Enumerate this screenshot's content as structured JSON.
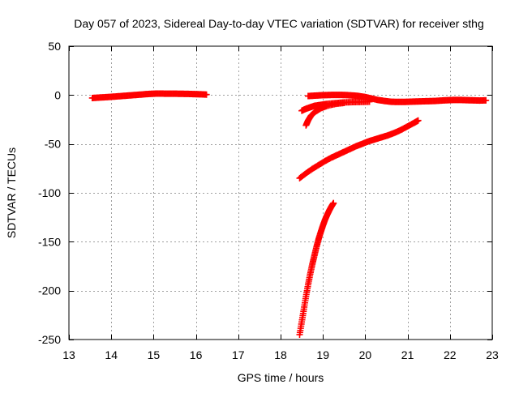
{
  "chart_data": {
    "type": "scatter",
    "title": "Day 057 of 2023, Sidereal Day-to-day VTEC variation (SDTVAR) for receiver sthg",
    "xlabel": "GPS time / hours",
    "ylabel": "SDTVAR / TECUs",
    "xlim": [
      13,
      23
    ],
    "ylim": [
      -250,
      50
    ],
    "x_ticks": [
      13,
      14,
      15,
      16,
      17,
      18,
      19,
      20,
      21,
      22,
      23
    ],
    "y_ticks": [
      50,
      0,
      -50,
      -100,
      -150,
      -200,
      -250
    ],
    "grid": true,
    "legend": "none",
    "marker": "plus",
    "color": "#ff0000",
    "series": [
      {
        "values": [
          [
            13.55,
            -3.0
          ],
          [
            13.7,
            -2.6
          ],
          [
            13.85,
            -2.2
          ],
          [
            14.0,
            -1.8
          ],
          [
            14.15,
            -1.3
          ],
          [
            14.3,
            -0.8
          ],
          [
            14.45,
            -0.3
          ],
          [
            14.6,
            0.2
          ],
          [
            14.75,
            0.7
          ],
          [
            14.9,
            1.2
          ],
          [
            15.05,
            1.5
          ],
          [
            15.2,
            1.5
          ],
          [
            15.35,
            1.4
          ],
          [
            15.5,
            1.4
          ],
          [
            15.65,
            1.3
          ],
          [
            15.8,
            1.2
          ],
          [
            15.95,
            1.0
          ],
          [
            16.1,
            0.8
          ],
          [
            16.25,
            0.5
          ]
        ]
      },
      {
        "values": [
          [
            18.65,
            -1.0
          ],
          [
            18.8,
            -0.6
          ],
          [
            18.95,
            -0.2
          ],
          [
            19.1,
            0.0
          ],
          [
            19.25,
            0.2
          ],
          [
            19.4,
            0.2
          ],
          [
            19.55,
            0.0
          ],
          [
            19.7,
            -0.4
          ],
          [
            19.85,
            -1.0
          ],
          [
            20.0,
            -2.0
          ],
          [
            20.15,
            -3.5
          ],
          [
            20.3,
            -5.0
          ],
          [
            20.45,
            -6.0
          ],
          [
            20.6,
            -6.8
          ],
          [
            20.75,
            -7.0
          ],
          [
            20.9,
            -7.0
          ],
          [
            21.05,
            -6.8
          ],
          [
            21.2,
            -6.6
          ],
          [
            21.35,
            -6.4
          ],
          [
            21.5,
            -6.2
          ],
          [
            21.65,
            -6.0
          ],
          [
            21.8,
            -5.6
          ],
          [
            21.95,
            -5.2
          ],
          [
            22.1,
            -5.0
          ],
          [
            22.25,
            -5.0
          ],
          [
            22.4,
            -5.2
          ],
          [
            22.55,
            -5.4
          ],
          [
            22.7,
            -5.6
          ],
          [
            22.85,
            -5.4
          ]
        ]
      },
      {
        "values": [
          [
            18.5,
            -16.0
          ],
          [
            18.6,
            -14.0
          ],
          [
            18.7,
            -12.5
          ],
          [
            18.8,
            -11.0
          ],
          [
            18.95,
            -10.0
          ],
          [
            19.1,
            -9.0
          ],
          [
            19.3,
            -8.2
          ],
          [
            19.5,
            -7.5
          ],
          [
            19.7,
            -7.2
          ],
          [
            19.9,
            -7.0
          ],
          [
            20.1,
            -6.8
          ]
        ]
      },
      {
        "values": [
          [
            18.6,
            -31.0
          ],
          [
            18.65,
            -26.0
          ],
          [
            18.72,
            -21.0
          ],
          [
            18.82,
            -17.0
          ],
          [
            18.95,
            -13.5
          ],
          [
            19.1,
            -11.0
          ],
          [
            19.3,
            -9.0
          ],
          [
            19.5,
            -8.0
          ]
        ]
      },
      {
        "values": [
          [
            18.45,
            -85.0
          ],
          [
            18.6,
            -80.0
          ],
          [
            18.75,
            -75.5
          ],
          [
            18.9,
            -71.5
          ],
          [
            19.05,
            -67.5
          ],
          [
            19.2,
            -64.0
          ],
          [
            19.35,
            -61.0
          ],
          [
            19.5,
            -58.0
          ],
          [
            19.65,
            -55.0
          ],
          [
            19.8,
            -52.0
          ],
          [
            19.95,
            -49.5
          ],
          [
            20.1,
            -47.0
          ],
          [
            20.25,
            -45.0
          ],
          [
            20.4,
            -43.0
          ],
          [
            20.55,
            -41.0
          ],
          [
            20.7,
            -38.5
          ],
          [
            20.85,
            -35.5
          ],
          [
            21.0,
            -32.0
          ],
          [
            21.15,
            -28.5
          ],
          [
            21.25,
            -26.0
          ]
        ]
      },
      {
        "values": [
          [
            18.45,
            -245.0
          ],
          [
            18.5,
            -232.0
          ],
          [
            18.55,
            -219.0
          ],
          [
            18.6,
            -206.0
          ],
          [
            18.65,
            -194.0
          ],
          [
            18.7,
            -183.0
          ],
          [
            18.75,
            -173.0
          ],
          [
            18.8,
            -164.0
          ],
          [
            18.85,
            -155.0
          ],
          [
            18.9,
            -147.0
          ],
          [
            18.95,
            -140.0
          ],
          [
            19.0,
            -133.5
          ],
          [
            19.05,
            -127.5
          ],
          [
            19.1,
            -122.5
          ],
          [
            19.15,
            -118.0
          ],
          [
            19.2,
            -114.0
          ],
          [
            19.25,
            -110.5
          ]
        ]
      }
    ]
  }
}
